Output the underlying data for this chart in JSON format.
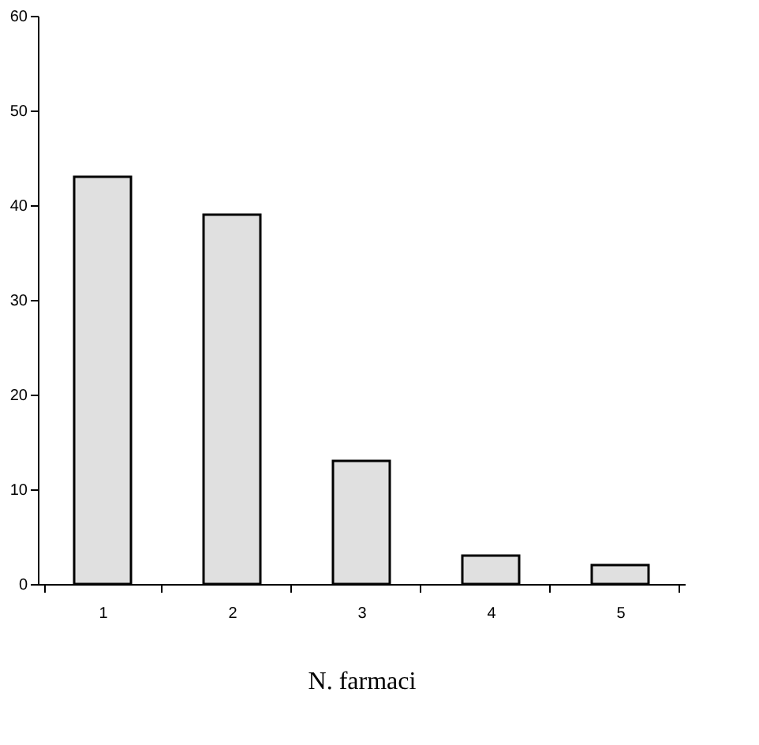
{
  "chart_data": {
    "type": "bar",
    "xlabel": "N. farmaci",
    "categories": [
      "1",
      "2",
      "3",
      "4",
      "5"
    ],
    "values": [
      43,
      39,
      13,
      3,
      2
    ],
    "color": "#e0e0e0",
    "ylim": [
      0,
      60
    ],
    "yticks": [
      0,
      10,
      20,
      30,
      40,
      50,
      60
    ],
    "grid": false
  }
}
